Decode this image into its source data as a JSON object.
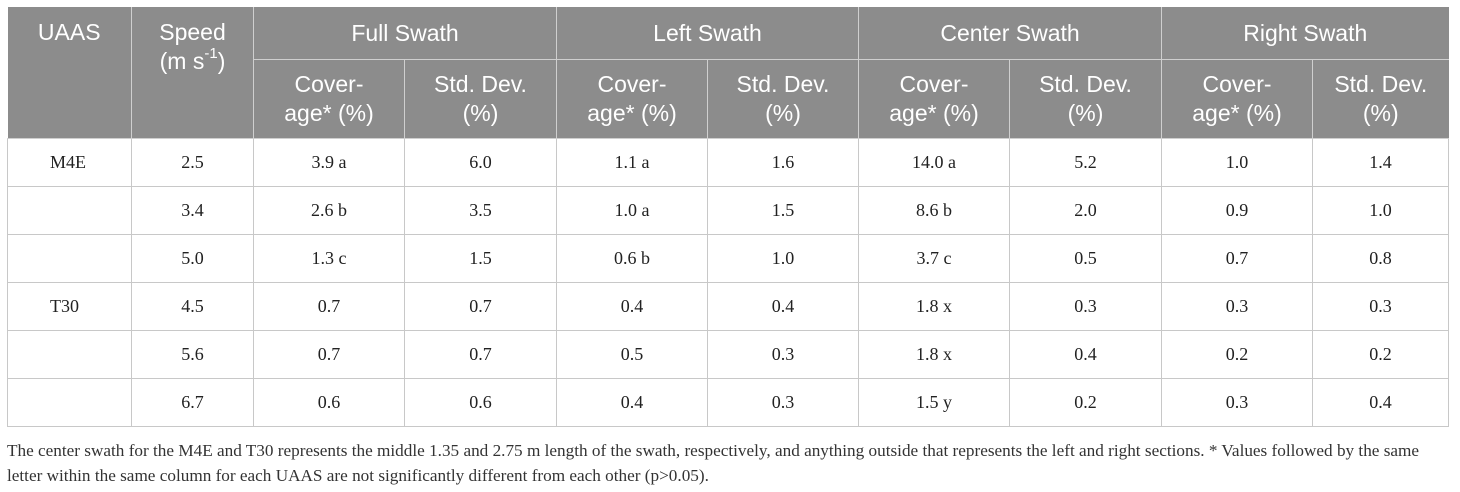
{
  "table": {
    "headers": {
      "uaas": "UAAS",
      "speed_main": "Speed",
      "speed_unit": "(m s",
      "speed_exp": "-1",
      "speed_close": ")",
      "groups": [
        "Full Swath",
        "Left Swath",
        "Center Swath",
        "Right Swath"
      ],
      "coverage_line1": "Cover-",
      "coverage_line2": "age* (%)",
      "stddev_line1": "Std. Dev.",
      "stddev_line2": "(%)"
    },
    "rows": [
      {
        "uaas": "M4E",
        "speed": "2.5",
        "full_cov": "3.9 a",
        "full_sd": "6.0",
        "left_cov": "1.1 a",
        "left_sd": "1.6",
        "center_cov": "14.0 a",
        "center_sd": "5.2",
        "right_cov": "1.0",
        "right_sd": "1.4"
      },
      {
        "uaas": "",
        "speed": "3.4",
        "full_cov": "2.6 b",
        "full_sd": "3.5",
        "left_cov": "1.0 a",
        "left_sd": "1.5",
        "center_cov": "8.6 b",
        "center_sd": "2.0",
        "right_cov": "0.9",
        "right_sd": "1.0"
      },
      {
        "uaas": "",
        "speed": "5.0",
        "full_cov": "1.3 c",
        "full_sd": "1.5",
        "left_cov": "0.6 b",
        "left_sd": "1.0",
        "center_cov": "3.7 c",
        "center_sd": "0.5",
        "right_cov": "0.7",
        "right_sd": "0.8"
      },
      {
        "uaas": "T30",
        "speed": "4.5",
        "full_cov": "0.7",
        "full_sd": "0.7",
        "left_cov": "0.4",
        "left_sd": "0.4",
        "center_cov": "1.8 x",
        "center_sd": "0.3",
        "right_cov": "0.3",
        "right_sd": "0.3"
      },
      {
        "uaas": "",
        "speed": "5.6",
        "full_cov": "0.7",
        "full_sd": "0.7",
        "left_cov": "0.5",
        "left_sd": "0.3",
        "center_cov": "1.8 x",
        "center_sd": "0.4",
        "right_cov": "0.2",
        "right_sd": "0.2"
      },
      {
        "uaas": "",
        "speed": "6.7",
        "full_cov": "0.6",
        "full_sd": "0.6",
        "left_cov": "0.4",
        "left_sd": "0.3",
        "center_cov": "1.5 y",
        "center_sd": "0.2",
        "right_cov": "0.3",
        "right_sd": "0.4"
      }
    ]
  },
  "footnote": "The center swath for the M4E and T30 represents the middle 1.35 and 2.75 m length of the swath, respectively, and anything outside that represents the left and right sections. * Values followed by the same letter within the same column for each UAAS are not significantly different from each other (p>0.05)."
}
